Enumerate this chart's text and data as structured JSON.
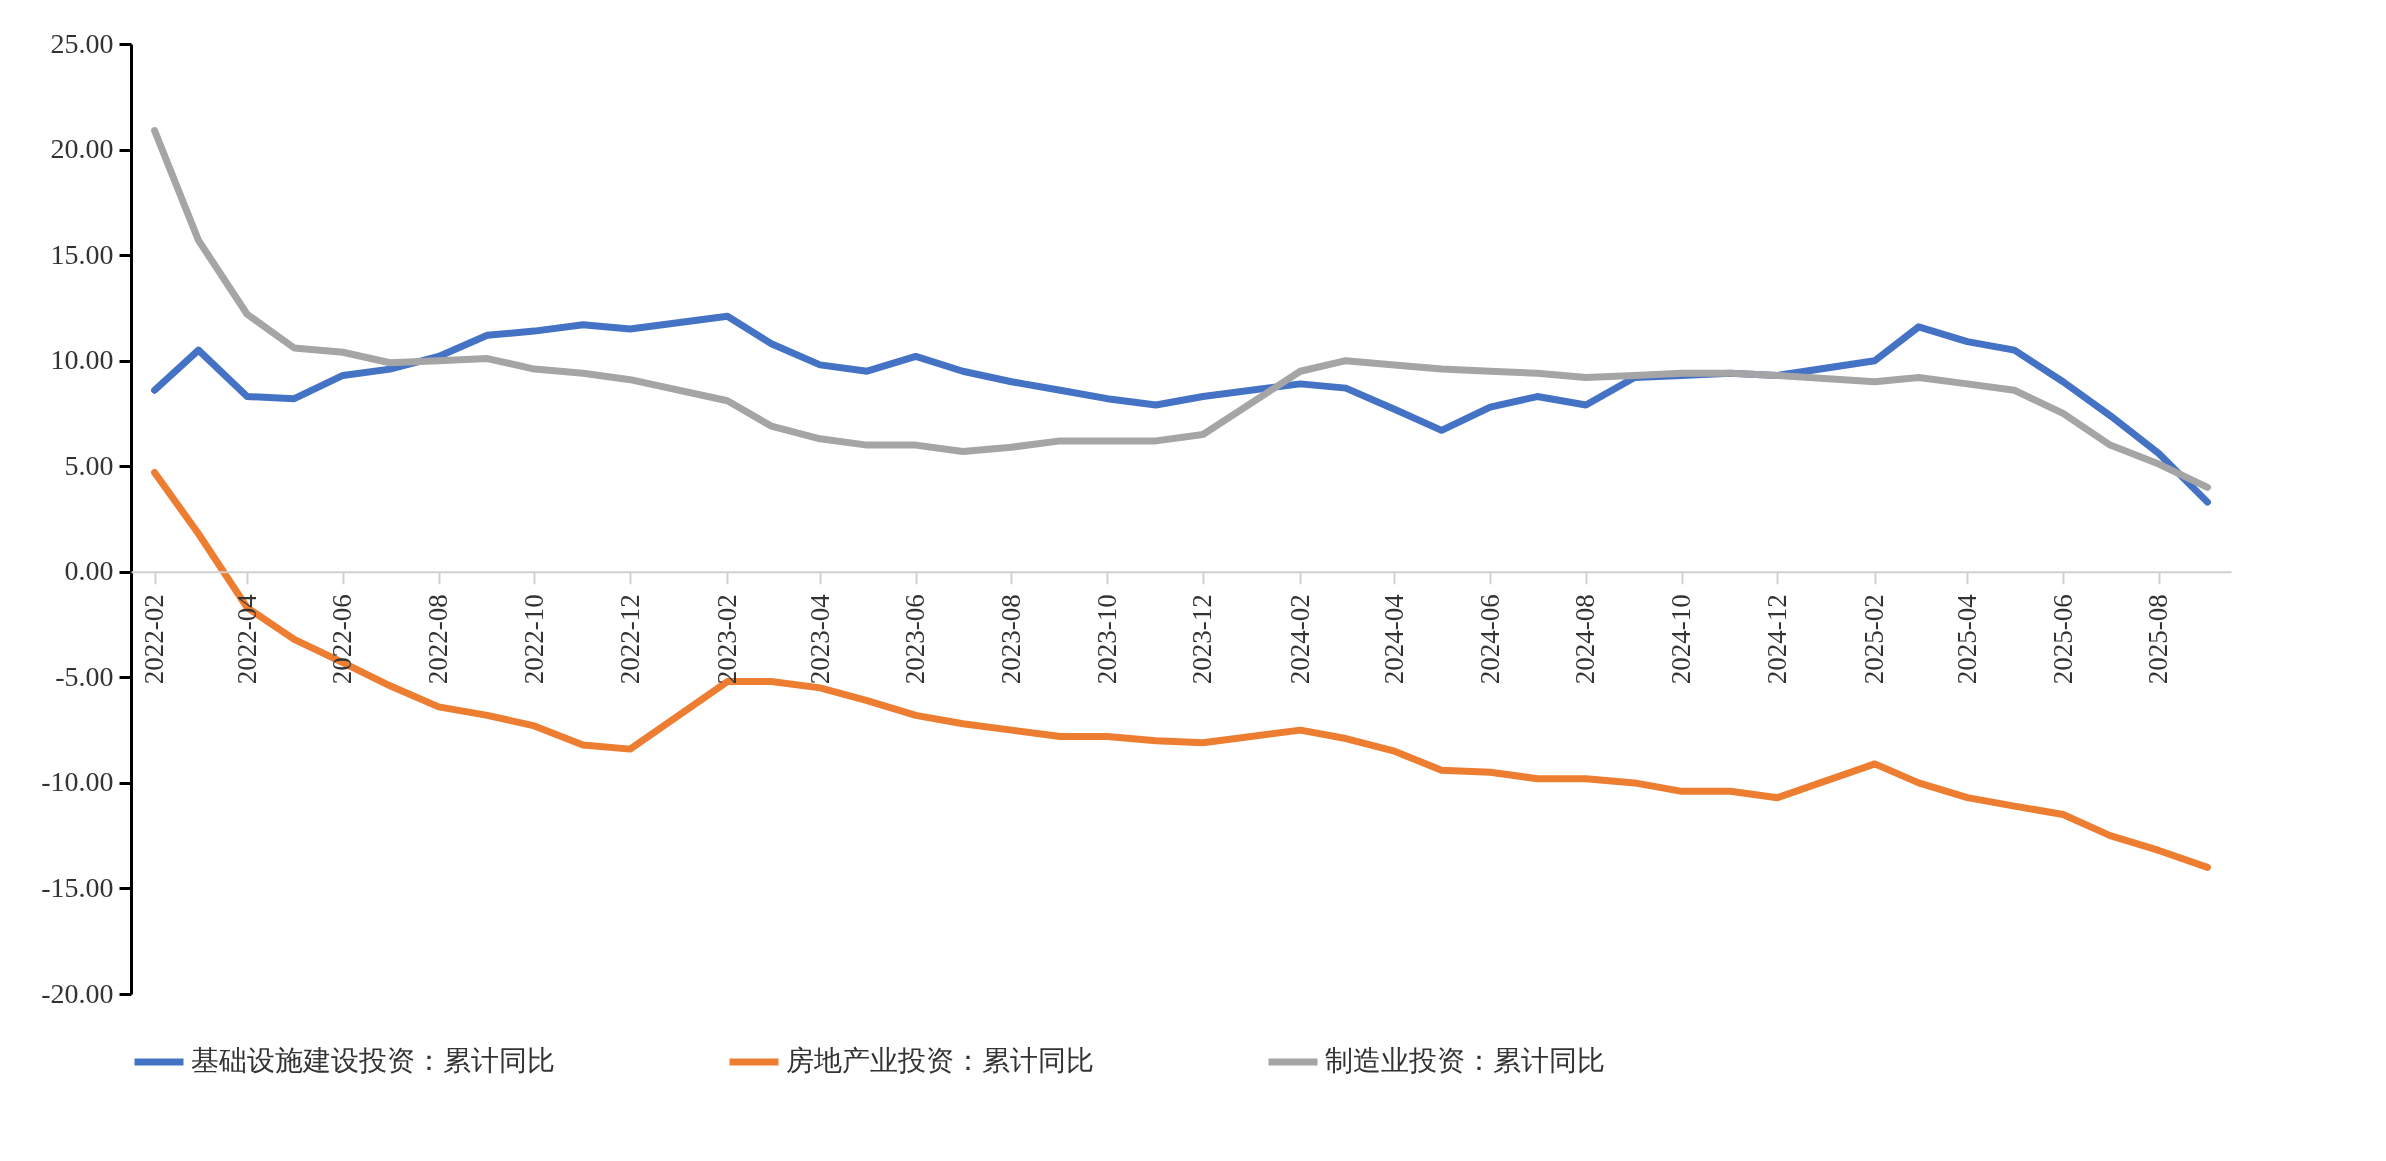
{
  "chart_data": {
    "type": "line",
    "x": [
      "2022-02",
      "2022-03",
      "2022-04",
      "2022-05",
      "2022-06",
      "2022-07",
      "2022-08",
      "2022-09",
      "2022-10",
      "2022-11",
      "2022-12",
      "2023-02",
      "2023-03",
      "2023-04",
      "2023-05",
      "2023-06",
      "2023-07",
      "2023-08",
      "2023-09",
      "2023-10",
      "2023-11",
      "2023-12",
      "2024-02",
      "2024-03",
      "2024-04",
      "2024-05",
      "2024-06",
      "2024-07",
      "2024-08",
      "2024-09",
      "2024-10",
      "2024-11",
      "2024-12",
      "2025-02",
      "2025-03",
      "2025-04",
      "2025-05",
      "2025-06",
      "2025-07",
      "2025-08",
      "2025-09"
    ],
    "series": [
      {
        "name": "基础设施建设投资：累计同比",
        "color": "#4472c4",
        "values": [
          8.6,
          10.5,
          8.3,
          8.2,
          9.3,
          9.6,
          10.2,
          11.2,
          11.4,
          11.7,
          11.5,
          12.1,
          10.8,
          9.8,
          9.5,
          10.2,
          9.5,
          9.0,
          8.6,
          8.2,
          7.9,
          8.3,
          8.9,
          8.7,
          7.7,
          6.7,
          7.8,
          8.3,
          7.9,
          9.2,
          9.3,
          9.4,
          9.3,
          10.0,
          11.6,
          10.9,
          10.5,
          9.0,
          7.4,
          5.6,
          3.3
        ]
      },
      {
        "name": "房地产业投资：累计同比",
        "color": "#ed7d31",
        "values": [
          4.7,
          1.8,
          -1.7,
          -3.2,
          -4.3,
          -5.4,
          -6.4,
          -6.8,
          -7.3,
          -8.2,
          -8.4,
          -5.2,
          -5.2,
          -5.5,
          -6.1,
          -6.8,
          -7.2,
          -7.5,
          -7.8,
          -7.8,
          -8.0,
          -8.1,
          -7.5,
          -7.9,
          -8.5,
          -9.4,
          -9.5,
          -9.8,
          -9.8,
          -10.0,
          -10.4,
          -10.4,
          -10.7,
          -9.1,
          -10.0,
          -10.7,
          -11.1,
          -11.5,
          -12.5,
          -13.2,
          -14.0
        ]
      },
      {
        "name": "制造业投资：累计同比",
        "color": "#a5a5a5",
        "values": [
          20.9,
          15.7,
          12.2,
          10.6,
          10.4,
          9.9,
          10.0,
          10.1,
          9.6,
          9.4,
          9.1,
          8.1,
          6.9,
          6.3,
          6.0,
          6.0,
          5.7,
          5.9,
          6.2,
          6.2,
          6.2,
          6.5,
          9.5,
          10.0,
          9.8,
          9.6,
          9.5,
          9.4,
          9.2,
          9.3,
          9.4,
          9.4,
          9.3,
          9.0,
          9.2,
          8.9,
          8.6,
          7.5,
          6.0,
          5.1,
          4.0
        ]
      }
    ],
    "xlim": [
      "2022-01-17",
      "2025-09-16"
    ],
    "xticks": [
      "2022-02",
      "2022-04",
      "2022-06",
      "2022-08",
      "2022-10",
      "2022-12",
      "2023-02",
      "2023-04",
      "2023-06",
      "2023-08",
      "2023-10",
      "2023-12",
      "2024-02",
      "2024-04",
      "2024-06",
      "2024-08",
      "2024-10",
      "2024-12",
      "2025-02",
      "2025-04",
      "2025-06",
      "2025-08"
    ],
    "ylim": [
      -20,
      25
    ],
    "yticks": [
      {
        "value": 25,
        "label": "25.00"
      },
      {
        "value": 20,
        "label": "20.00"
      },
      {
        "value": 15,
        "label": "15.00"
      },
      {
        "value": 10,
        "label": "10.00"
      },
      {
        "value": 5,
        "label": "5.00"
      },
      {
        "value": 0,
        "label": "0.00"
      },
      {
        "value": -5,
        "label": "-5.00"
      },
      {
        "value": -10,
        "label": "-10.00"
      },
      {
        "value": -15,
        "label": "-15.00"
      },
      {
        "value": -20,
        "label": "-20.00"
      }
    ],
    "grid": false,
    "legend": "bottom"
  }
}
